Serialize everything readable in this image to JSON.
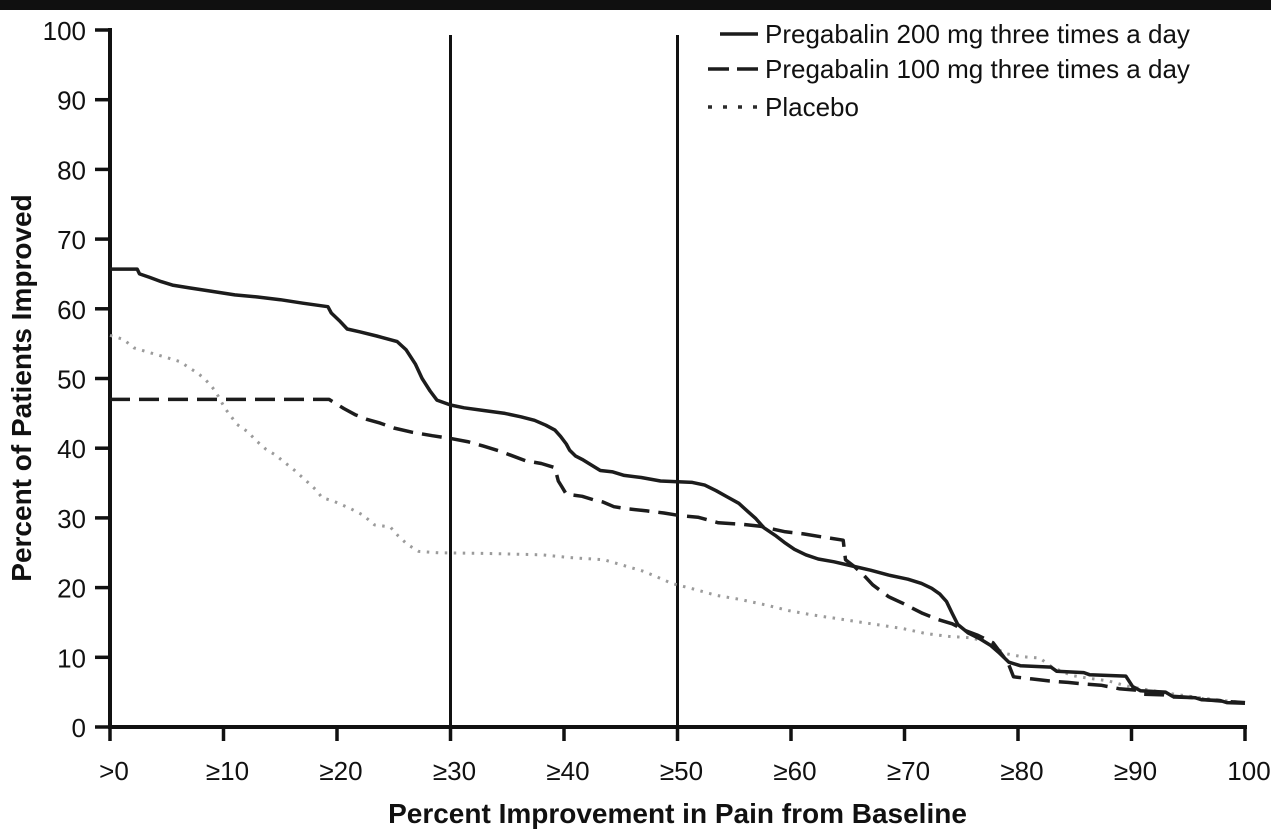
{
  "figure": {
    "x_axis_title": "Percent Improvement in Pain from Baseline",
    "y_axis_title": "Percent of Patients Improved"
  },
  "chart_data": {
    "type": "line",
    "title": "",
    "xlabel": "Percent Improvement in Pain from Baseline",
    "ylabel": "Percent of Patients Improved",
    "x_range": [
      0,
      100
    ],
    "y_range": [
      0,
      100
    ],
    "grid": false,
    "legend_position": "top-right",
    "x_ticks": {
      "values": [
        0,
        10,
        20,
        30,
        40,
        50,
        60,
        70,
        80,
        90,
        100
      ],
      "labels": [
        ">0",
        "≥10",
        "≥20",
        "≥30",
        "≥40",
        "≥50",
        "≥60",
        "≥70",
        "≥80",
        "≥90",
        "100"
      ]
    },
    "y_ticks": {
      "values": [
        0,
        10,
        20,
        30,
        40,
        50,
        60,
        70,
        80,
        90,
        100
      ],
      "labels": [
        "0",
        "10",
        "20",
        "30",
        "40",
        "50",
        "60",
        "70",
        "80",
        "90",
        "100"
      ]
    },
    "reference_lines_x": [
      30,
      50
    ],
    "colors": {
      "line_black": "#1c1c1c",
      "placebo_gray": "#9b9b9b",
      "axis_black": "#111111"
    },
    "legend": {
      "items": [
        {
          "label": "Pregabalin 200 mg three times a day",
          "line_style": "solid",
          "color": "#1c1c1c"
        },
        {
          "label": "Pregabalin 100 mg three times a day",
          "line_style": "dashed",
          "color": "#1c1c1c"
        },
        {
          "label": "Placebo",
          "line_style": "dotted",
          "color": "#2b2b2b"
        }
      ]
    },
    "series": [
      {
        "name": "Pregabalin 200 mg three times a day",
        "line_style": "solid",
        "color": "#1c1c1c",
        "points": [
          [
            0,
            65.7
          ],
          [
            2.4,
            65.7
          ],
          [
            2.6,
            65.0
          ],
          [
            3.5,
            64.5
          ],
          [
            4.5,
            63.9
          ],
          [
            5.5,
            63.4
          ],
          [
            7,
            63.0
          ],
          [
            9,
            62.5
          ],
          [
            11,
            62.0
          ],
          [
            13,
            61.7
          ],
          [
            15,
            61.3
          ],
          [
            17,
            60.8
          ],
          [
            19.2,
            60.3
          ],
          [
            19.5,
            59.4
          ],
          [
            20.2,
            58.3
          ],
          [
            20.9,
            57.1
          ],
          [
            22,
            56.7
          ],
          [
            23.5,
            56.1
          ],
          [
            25.3,
            55.3
          ],
          [
            26.1,
            54.1
          ],
          [
            26.9,
            52.1
          ],
          [
            27.5,
            50.0
          ],
          [
            28.2,
            48.2
          ],
          [
            28.8,
            46.9
          ],
          [
            30,
            46.2
          ],
          [
            31.2,
            45.8
          ],
          [
            33,
            45.4
          ],
          [
            34.8,
            45.0
          ],
          [
            36.2,
            44.5
          ],
          [
            37.4,
            44.0
          ],
          [
            38.4,
            43.3
          ],
          [
            39.2,
            42.6
          ],
          [
            39.7,
            41.7
          ],
          [
            40.2,
            40.6
          ],
          [
            40.5,
            39.7
          ],
          [
            41,
            38.9
          ],
          [
            41.6,
            38.4
          ],
          [
            42.3,
            37.7
          ],
          [
            43.2,
            36.8
          ],
          [
            44.3,
            36.6
          ],
          [
            45.3,
            36.1
          ],
          [
            46.8,
            35.8
          ],
          [
            48.5,
            35.3
          ],
          [
            51.3,
            35.1
          ],
          [
            52.4,
            34.7
          ],
          [
            53.4,
            33.9
          ],
          [
            54.4,
            33.0
          ],
          [
            55.4,
            32.1
          ],
          [
            56.2,
            30.9
          ],
          [
            56.9,
            29.9
          ],
          [
            57.6,
            28.6
          ],
          [
            58.6,
            27.5
          ],
          [
            59.4,
            26.5
          ],
          [
            60.3,
            25.5
          ],
          [
            61.3,
            24.7
          ],
          [
            62.4,
            24.1
          ],
          [
            63.8,
            23.7
          ],
          [
            65.4,
            23.1
          ],
          [
            67,
            22.5
          ],
          [
            68.6,
            21.8
          ],
          [
            70.3,
            21.2
          ],
          [
            71.5,
            20.6
          ],
          [
            72.4,
            19.9
          ],
          [
            73.1,
            19.1
          ],
          [
            73.7,
            18.0
          ],
          [
            74.2,
            16.3
          ],
          [
            74.7,
            14.7
          ],
          [
            75.6,
            13.5
          ],
          [
            76.6,
            12.7
          ],
          [
            77.6,
            11.7
          ],
          [
            78.3,
            10.7
          ],
          [
            79.2,
            9.3
          ],
          [
            80.2,
            8.8
          ],
          [
            82.9,
            8.6
          ],
          [
            83.4,
            8.0
          ],
          [
            85.8,
            7.8
          ],
          [
            86.3,
            7.5
          ],
          [
            89.5,
            7.3
          ],
          [
            90.1,
            5.8
          ],
          [
            90.8,
            5.2
          ],
          [
            93,
            5.0
          ],
          [
            93.6,
            4.4
          ],
          [
            95.6,
            4.2
          ],
          [
            96.2,
            3.9
          ],
          [
            97.8,
            3.8
          ],
          [
            98.4,
            3.5
          ],
          [
            100,
            3.4
          ]
        ]
      },
      {
        "name": "Pregabalin 100 mg three times a day",
        "line_style": "dashed",
        "color": "#1c1c1c",
        "points": [
          [
            0,
            47.0
          ],
          [
            19.3,
            47.0
          ],
          [
            19.9,
            46.4
          ],
          [
            20.6,
            45.7
          ],
          [
            21.6,
            44.8
          ],
          [
            22.7,
            44.1
          ],
          [
            23.8,
            43.6
          ],
          [
            25,
            42.9
          ],
          [
            26.6,
            42.3
          ],
          [
            28.4,
            41.8
          ],
          [
            30,
            41.4
          ],
          [
            31.6,
            40.9
          ],
          [
            32.9,
            40.3
          ],
          [
            34.3,
            39.6
          ],
          [
            35.3,
            39.0
          ],
          [
            36.6,
            38.2
          ],
          [
            38,
            37.8
          ],
          [
            39.2,
            37.2
          ],
          [
            39.5,
            35.3
          ],
          [
            39.8,
            34.5
          ],
          [
            40.2,
            33.4
          ],
          [
            41.6,
            33.1
          ],
          [
            42.6,
            32.6
          ],
          [
            43.4,
            32.3
          ],
          [
            44.4,
            31.6
          ],
          [
            45.6,
            31.3
          ],
          [
            47.3,
            31.0
          ],
          [
            48.8,
            30.7
          ],
          [
            50.3,
            30.3
          ],
          [
            51.8,
            30.1
          ],
          [
            53.6,
            29.3
          ],
          [
            55.6,
            29.1
          ],
          [
            57.3,
            28.8
          ],
          [
            59.5,
            28.0
          ],
          [
            61.1,
            27.7
          ],
          [
            62.6,
            27.3
          ],
          [
            64.6,
            26.8
          ],
          [
            64.8,
            24.0
          ],
          [
            65.6,
            23.0
          ],
          [
            66.4,
            21.8
          ],
          [
            67.2,
            20.4
          ],
          [
            68.6,
            18.7
          ],
          [
            69.9,
            17.7
          ],
          [
            71.6,
            16.3
          ],
          [
            73,
            15.4
          ],
          [
            74.2,
            14.8
          ],
          [
            75.4,
            13.8
          ],
          [
            76.4,
            13.2
          ],
          [
            77.8,
            12.1
          ],
          [
            79.1,
            9.3
          ],
          [
            79.6,
            7.2
          ],
          [
            81.2,
            6.9
          ],
          [
            82.8,
            6.6
          ],
          [
            84.4,
            6.4
          ],
          [
            85.6,
            6.2
          ],
          [
            87.3,
            6.0
          ],
          [
            88.9,
            5.5
          ],
          [
            90.4,
            5.3
          ],
          [
            91,
            4.7
          ],
          [
            92.8,
            4.6
          ],
          [
            93.7,
            4.3
          ],
          [
            95.5,
            4.2
          ],
          [
            96.5,
            3.9
          ],
          [
            98,
            3.7
          ],
          [
            100,
            3.5
          ]
        ]
      },
      {
        "name": "Placebo",
        "line_style": "dotted",
        "color": "#9b9b9b",
        "points": [
          [
            0,
            56.2
          ],
          [
            1.2,
            55.6
          ],
          [
            2.1,
            54.4
          ],
          [
            3.3,
            53.8
          ],
          [
            5,
            53.0
          ],
          [
            6.2,
            52.4
          ],
          [
            7,
            51.5
          ],
          [
            7.7,
            50.8
          ],
          [
            8.3,
            50.0
          ],
          [
            8.9,
            49.0
          ],
          [
            9.3,
            48.1
          ],
          [
            9.7,
            47.0
          ],
          [
            10.1,
            45.8
          ],
          [
            10.6,
            44.7
          ],
          [
            11.2,
            43.4
          ],
          [
            12.1,
            42.4
          ],
          [
            13,
            40.9
          ],
          [
            13.7,
            39.9
          ],
          [
            14.6,
            39.0
          ],
          [
            15.2,
            38.2
          ],
          [
            16.2,
            36.9
          ],
          [
            17.3,
            35.3
          ],
          [
            18.1,
            34.1
          ],
          [
            18.7,
            32.9
          ],
          [
            19.7,
            32.4
          ],
          [
            21.1,
            31.4
          ],
          [
            22.3,
            30.4
          ],
          [
            23.3,
            29.0
          ],
          [
            24.7,
            28.7
          ],
          [
            25.4,
            27.4
          ],
          [
            26.2,
            26.2
          ],
          [
            27.2,
            25.2
          ],
          [
            29,
            25.0
          ],
          [
            33,
            24.9
          ],
          [
            38,
            24.7
          ],
          [
            40.5,
            24.3
          ],
          [
            43.5,
            24.0
          ],
          [
            45.2,
            23.2
          ],
          [
            46.9,
            22.4
          ],
          [
            48.1,
            21.6
          ],
          [
            49.5,
            20.6
          ],
          [
            51.4,
            19.8
          ],
          [
            53.4,
            18.9
          ],
          [
            55.5,
            18.3
          ],
          [
            57.8,
            17.5
          ],
          [
            59.8,
            16.7
          ],
          [
            61.8,
            16.1
          ],
          [
            63.9,
            15.6
          ],
          [
            65.9,
            15.1
          ],
          [
            67.9,
            14.6
          ],
          [
            69.9,
            14.1
          ],
          [
            71.9,
            13.4
          ],
          [
            73.9,
            13.0
          ],
          [
            75.9,
            12.8
          ],
          [
            77,
            12.3
          ],
          [
            78,
            11.3
          ],
          [
            79,
            10.5
          ],
          [
            80.3,
            10.1
          ],
          [
            81.9,
            9.9
          ],
          [
            83,
            8.6
          ],
          [
            84.7,
            7.4
          ],
          [
            86.2,
            7.0
          ],
          [
            88,
            6.6
          ],
          [
            89.3,
            6.0
          ],
          [
            90.5,
            5.6
          ],
          [
            92.3,
            5.1
          ],
          [
            94.2,
            4.6
          ],
          [
            96,
            4.2
          ],
          [
            98,
            3.8
          ],
          [
            100,
            3.5
          ]
        ]
      }
    ]
  }
}
